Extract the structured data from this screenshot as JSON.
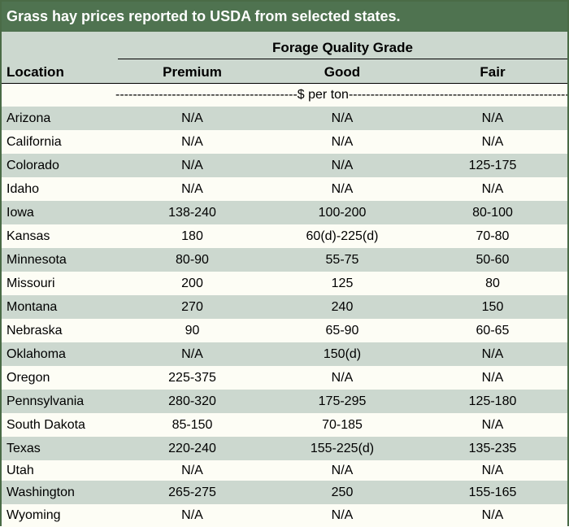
{
  "title": "Grass hay prices reported to USDA from selected states.",
  "group_header": "Forage Quality Grade",
  "columns": {
    "location": "Location",
    "premium": "Premium",
    "good": "Good",
    "fair": "Fair"
  },
  "unit_row": "------------------------------------------$ per ton-----------------------------------------------------",
  "rows": [
    {
      "location": "Arizona",
      "premium": "N/A",
      "good": "N/A",
      "fair": "N/A"
    },
    {
      "location": "California",
      "premium": "N/A",
      "good": "N/A",
      "fair": "N/A"
    },
    {
      "location": "Colorado",
      "premium": "N/A",
      "good": "N/A",
      "fair": "125-175"
    },
    {
      "location": "Idaho",
      "premium": "N/A",
      "good": "N/A",
      "fair": "N/A"
    },
    {
      "location": "Iowa",
      "premium": "138-240",
      "good": "100-200",
      "fair": "80-100"
    },
    {
      "location": "Kansas",
      "premium": "180",
      "good": "60(d)-225(d)",
      "fair": "70-80"
    },
    {
      "location": "Minnesota",
      "premium": "80-90",
      "good": "55-75",
      "fair": "50-60"
    },
    {
      "location": "Missouri",
      "premium": "200",
      "good": "125",
      "fair": "80"
    },
    {
      "location": "Montana",
      "premium": "270",
      "good": "240",
      "fair": "150"
    },
    {
      "location": "Nebraska",
      "premium": "90",
      "good": "65-90",
      "fair": "60-65"
    },
    {
      "location": "Oklahoma",
      "premium": "N/A",
      "good": "150(d)",
      "fair": "N/A"
    },
    {
      "location": "Oregon",
      "premium": "225-375",
      "good": "N/A",
      "fair": "N/A"
    },
    {
      "location": "Pennsylvania",
      "premium": "280-320",
      "good": "175-295",
      "fair": "125-180"
    },
    {
      "location": "South Dakota",
      "premium": "85-150",
      "good": "70-185",
      "fair": "N/A"
    },
    {
      "location": "Texas",
      "premium": "220-240",
      "good": "155-225(d)",
      "fair": "135-235"
    },
    {
      "location": "Utah",
      "premium": "N/A",
      "good": "N/A",
      "fair": "N/A"
    },
    {
      "location": "Washington",
      "premium": "265-275",
      "good": "250",
      "fair": "155-165"
    },
    {
      "location": "Wyoming",
      "premium": "N/A",
      "good": "N/A",
      "fair": "N/A"
    }
  ],
  "colors": {
    "title_bg": "#4f7350",
    "shaded_row": "#ccd8cf",
    "plain_row": "#fdfdf5",
    "border": "#4a6b46"
  }
}
